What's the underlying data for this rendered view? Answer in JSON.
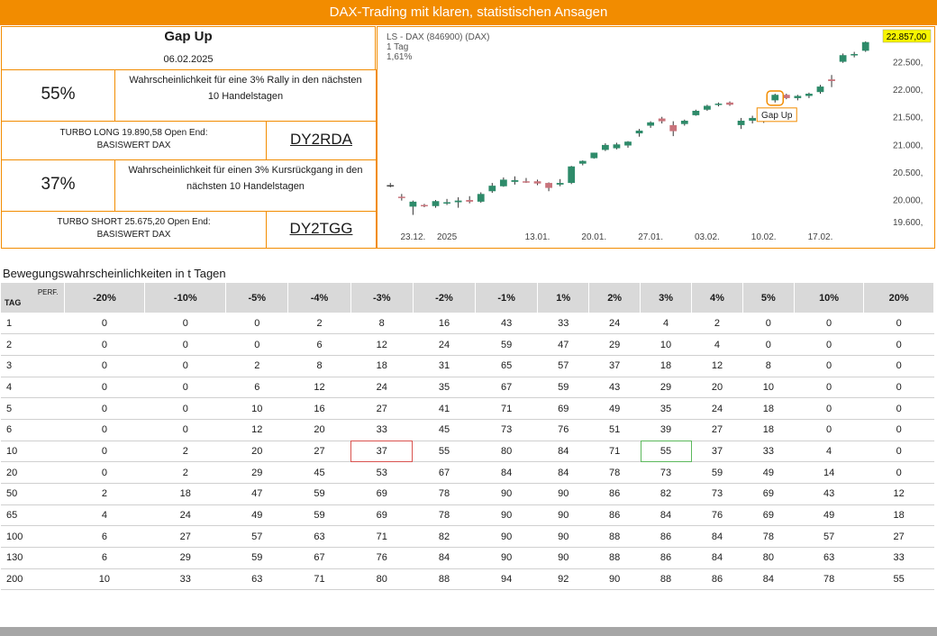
{
  "banner": "DAX-Trading mit klaren, statistischen Ansagen",
  "signal": {
    "title": "Gap Up",
    "date": "06.02.2025"
  },
  "long": {
    "pct": "55%",
    "desc_line1": "Wahrscheinlichkeit für eine 3% Rally in den nächsten",
    "desc_line2": "10 Handelstagen",
    "product_line1": "TURBO LONG 19.890,58 Open End:",
    "product_line2": "BASISWERT DAX",
    "wkn": "DY2RDA"
  },
  "short": {
    "pct": "37%",
    "desc_line1": "Wahrscheinlichkeit für einen 3% Kursrückgang in den",
    "desc_line2": "nächsten 10 Handelstagen",
    "product_line1": "TURBO SHORT 25.675,20 Open End:",
    "product_line2": "BASISWERT DAX",
    "wkn": "DY2TGG"
  },
  "chart_data": {
    "type": "candlestick",
    "header_line1": "LS - DAX (846900) (DAX)",
    "header_line2": "1 Tag",
    "header_line3": "1,61%",
    "last_price": "22.857,00",
    "annotation": "Gap Up",
    "ylim": [
      19500,
      23000
    ],
    "y_ticks": [
      {
        "label": "19.600,",
        "value": 19600
      },
      {
        "label": "20.000,",
        "value": 20000
      },
      {
        "label": "20.500,",
        "value": 20500
      },
      {
        "label": "21.000,",
        "value": 21000
      },
      {
        "label": "21.500,",
        "value": 21500
      },
      {
        "label": "22.000,",
        "value": 22000
      },
      {
        "label": "22.500,",
        "value": 22500
      }
    ],
    "x_ticks": [
      {
        "label": "23.12.",
        "index": 2
      },
      {
        "label": "2025",
        "index": 5
      },
      {
        "label": "13.01.",
        "index": 13
      },
      {
        "label": "20.01.",
        "index": 18
      },
      {
        "label": "27.01.",
        "index": 23
      },
      {
        "label": "03.02.",
        "index": 28
      },
      {
        "label": "10.02.",
        "index": 33
      },
      {
        "label": "17.02.",
        "index": 38
      }
    ],
    "candles": [
      {
        "o": 20250,
        "h": 20300,
        "l": 20220,
        "c": 20260
      },
      {
        "o": 20050,
        "h": 20100,
        "l": 19980,
        "c": 20030
      },
      {
        "o": 19870,
        "h": 19980,
        "l": 19720,
        "c": 19960
      },
      {
        "o": 19900,
        "h": 19920,
        "l": 19860,
        "c": 19880
      },
      {
        "o": 19880,
        "h": 19990,
        "l": 19850,
        "c": 19970
      },
      {
        "o": 19940,
        "h": 20010,
        "l": 19900,
        "c": 19950
      },
      {
        "o": 19950,
        "h": 20040,
        "l": 19850,
        "c": 19980
      },
      {
        "o": 19990,
        "h": 20060,
        "l": 19930,
        "c": 19960
      },
      {
        "o": 19960,
        "h": 20130,
        "l": 19940,
        "c": 20100
      },
      {
        "o": 20150,
        "h": 20300,
        "l": 20120,
        "c": 20250
      },
      {
        "o": 20240,
        "h": 20400,
        "l": 20230,
        "c": 20360
      },
      {
        "o": 20320,
        "h": 20420,
        "l": 20270,
        "c": 20350
      },
      {
        "o": 20330,
        "h": 20390,
        "l": 20300,
        "c": 20310
      },
      {
        "o": 20330,
        "h": 20360,
        "l": 20260,
        "c": 20290
      },
      {
        "o": 20300,
        "h": 20310,
        "l": 20150,
        "c": 20210
      },
      {
        "o": 20270,
        "h": 20370,
        "l": 20240,
        "c": 20300
      },
      {
        "o": 20300,
        "h": 20610,
        "l": 20280,
        "c": 20600
      },
      {
        "o": 20650,
        "h": 20710,
        "l": 20620,
        "c": 20700
      },
      {
        "o": 20750,
        "h": 20850,
        "l": 20740,
        "c": 20850
      },
      {
        "o": 20900,
        "h": 21020,
        "l": 20880,
        "c": 20990
      },
      {
        "o": 20930,
        "h": 21030,
        "l": 20910,
        "c": 21000
      },
      {
        "o": 20980,
        "h": 21060,
        "l": 20940,
        "c": 21050
      },
      {
        "o": 21200,
        "h": 21280,
        "l": 21140,
        "c": 21250
      },
      {
        "o": 21340,
        "h": 21420,
        "l": 21300,
        "c": 21400
      },
      {
        "o": 21470,
        "h": 21500,
        "l": 21380,
        "c": 21420
      },
      {
        "o": 21350,
        "h": 21420,
        "l": 21150,
        "c": 21240
      },
      {
        "o": 21370,
        "h": 21450,
        "l": 21340,
        "c": 21430
      },
      {
        "o": 21530,
        "h": 21630,
        "l": 21520,
        "c": 21610
      },
      {
        "o": 21630,
        "h": 21720,
        "l": 21610,
        "c": 21700
      },
      {
        "o": 21720,
        "h": 21760,
        "l": 21690,
        "c": 21740
      },
      {
        "o": 21760,
        "h": 21780,
        "l": 21700,
        "c": 21720
      },
      {
        "o": 21350,
        "h": 21480,
        "l": 21280,
        "c": 21430
      },
      {
        "o": 21430,
        "h": 21520,
        "l": 21380,
        "c": 21480
      },
      {
        "o": 21420,
        "h": 21560,
        "l": 21390,
        "c": 21520
      },
      {
        "o": 21800,
        "h": 21920,
        "l": 21760,
        "c": 21900
      },
      {
        "o": 21900,
        "h": 21920,
        "l": 21820,
        "c": 21840
      },
      {
        "o": 21840,
        "h": 21900,
        "l": 21800,
        "c": 21880
      },
      {
        "o": 21880,
        "h": 21940,
        "l": 21840,
        "c": 21920
      },
      {
        "o": 21950,
        "h": 22080,
        "l": 21920,
        "c": 22050
      },
      {
        "o": 22180,
        "h": 22260,
        "l": 22040,
        "c": 22150
      },
      {
        "o": 22500,
        "h": 22650,
        "l": 22480,
        "c": 22620
      },
      {
        "o": 22620,
        "h": 22680,
        "l": 22580,
        "c": 22640
      },
      {
        "o": 22700,
        "h": 22870,
        "l": 22680,
        "c": 22857
      }
    ],
    "gap_up_index": 34,
    "colors": {
      "up": "#2e8b6a",
      "down": "#c9737b",
      "neutral": "#444444",
      "accent": "#f28c00",
      "price_tag": "#f7f400"
    }
  },
  "table": {
    "subtitle": "Bewegungswahrscheinlichkeiten in t Tagen",
    "corner_perf": "PERF.",
    "corner_tag": "TAG",
    "columns": [
      "-20%",
      "-10%",
      "-5%",
      "-4%",
      "-3%",
      "-2%",
      "-1%",
      "1%",
      "2%",
      "3%",
      "4%",
      "5%",
      "10%",
      "20%"
    ],
    "rows": [
      {
        "tag": "1",
        "values": [
          "0",
          "0",
          "0",
          "2",
          "8",
          "16",
          "43",
          "33",
          "24",
          "4",
          "2",
          "0",
          "0",
          "0"
        ]
      },
      {
        "tag": "2",
        "values": [
          "0",
          "0",
          "0",
          "6",
          "12",
          "24",
          "59",
          "47",
          "29",
          "10",
          "4",
          "0",
          "0",
          "0"
        ]
      },
      {
        "tag": "3",
        "values": [
          "0",
          "0",
          "2",
          "8",
          "18",
          "31",
          "65",
          "57",
          "37",
          "18",
          "12",
          "8",
          "0",
          "0"
        ]
      },
      {
        "tag": "4",
        "values": [
          "0",
          "0",
          "6",
          "12",
          "24",
          "35",
          "67",
          "59",
          "43",
          "29",
          "20",
          "10",
          "0",
          "0"
        ]
      },
      {
        "tag": "5",
        "values": [
          "0",
          "0",
          "10",
          "16",
          "27",
          "41",
          "71",
          "69",
          "49",
          "35",
          "24",
          "18",
          "0",
          "0"
        ]
      },
      {
        "tag": "6",
        "values": [
          "0",
          "0",
          "12",
          "20",
          "33",
          "45",
          "73",
          "76",
          "51",
          "39",
          "27",
          "18",
          "0",
          "0"
        ]
      },
      {
        "tag": "10",
        "values": [
          "0",
          "2",
          "20",
          "27",
          "37",
          "55",
          "80",
          "84",
          "71",
          "55",
          "37",
          "33",
          "4",
          "0"
        ]
      },
      {
        "tag": "20",
        "values": [
          "0",
          "2",
          "29",
          "45",
          "53",
          "67",
          "84",
          "84",
          "78",
          "73",
          "59",
          "49",
          "14",
          "0"
        ]
      },
      {
        "tag": "50",
        "values": [
          "2",
          "18",
          "47",
          "59",
          "69",
          "78",
          "90",
          "90",
          "86",
          "82",
          "73",
          "69",
          "43",
          "12"
        ]
      },
      {
        "tag": "65",
        "values": [
          "4",
          "24",
          "49",
          "59",
          "69",
          "78",
          "90",
          "90",
          "86",
          "84",
          "76",
          "69",
          "49",
          "18"
        ]
      },
      {
        "tag": "100",
        "values": [
          "6",
          "27",
          "57",
          "63",
          "71",
          "82",
          "90",
          "90",
          "88",
          "86",
          "84",
          "78",
          "57",
          "27"
        ]
      },
      {
        "tag": "130",
        "values": [
          "6",
          "29",
          "59",
          "67",
          "76",
          "84",
          "90",
          "90",
          "88",
          "86",
          "84",
          "80",
          "63",
          "33"
        ]
      },
      {
        "tag": "200",
        "values": [
          "10",
          "33",
          "63",
          "71",
          "80",
          "88",
          "94",
          "92",
          "90",
          "88",
          "86",
          "84",
          "78",
          "55"
        ]
      }
    ],
    "highlight": [
      {
        "row": "10",
        "col": "-3%",
        "color": "red"
      },
      {
        "row": "10",
        "col": "3%",
        "color": "green"
      }
    ]
  }
}
